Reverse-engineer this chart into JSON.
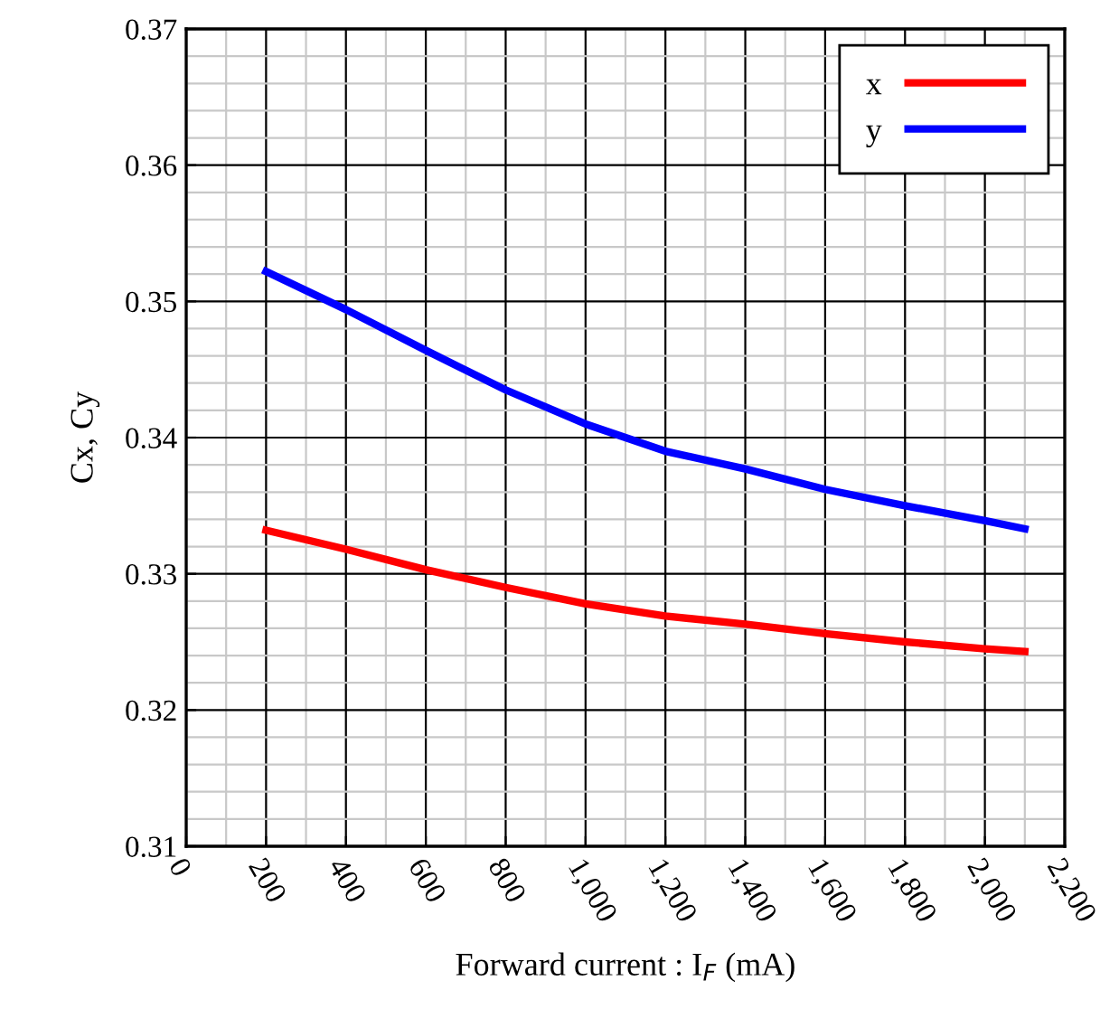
{
  "chart_data": {
    "type": "line",
    "xlabel": "Forward current : I$_{F}$ (mA)",
    "ylabel": "Cx, Cy",
    "xlim": [
      0,
      2200
    ],
    "ylim": [
      0.31,
      0.37
    ],
    "xticks": [
      0,
      200,
      400,
      600,
      800,
      {
        "value": 1000,
        "label": "1,000"
      },
      {
        "value": 1200,
        "label": "1,200"
      },
      {
        "value": 1400,
        "label": "1,400"
      },
      {
        "value": 1600,
        "label": "1,600"
      },
      {
        "value": 1800,
        "label": "1,800"
      },
      {
        "value": 2000,
        "label": "2,000"
      },
      {
        "value": 2200,
        "label": "2,200"
      }
    ],
    "yticks": [
      0.31,
      0.32,
      0.33,
      0.34,
      0.35,
      0.36,
      0.37
    ],
    "grid": true,
    "legend": "top right",
    "line_style": "solid",
    "marker": "none",
    "x": [
      200,
      400,
      600,
      800,
      1000,
      1200,
      1400,
      1600,
      1800,
      2000,
      2100
    ],
    "series": [
      {
        "name": "x",
        "color": "#ff0000",
        "values": [
          0.3332,
          0.3318,
          0.3303,
          0.329,
          0.3278,
          0.3269,
          0.3263,
          0.3256,
          0.325,
          0.3245,
          0.3243
        ]
      },
      {
        "name": "y",
        "color": "#0000ff",
        "values": [
          0.3522,
          0.3494,
          0.3464,
          0.3435,
          0.341,
          0.339,
          0.3377,
          0.3362,
          0.335,
          0.3339,
          0.3333
        ]
      }
    ]
  }
}
